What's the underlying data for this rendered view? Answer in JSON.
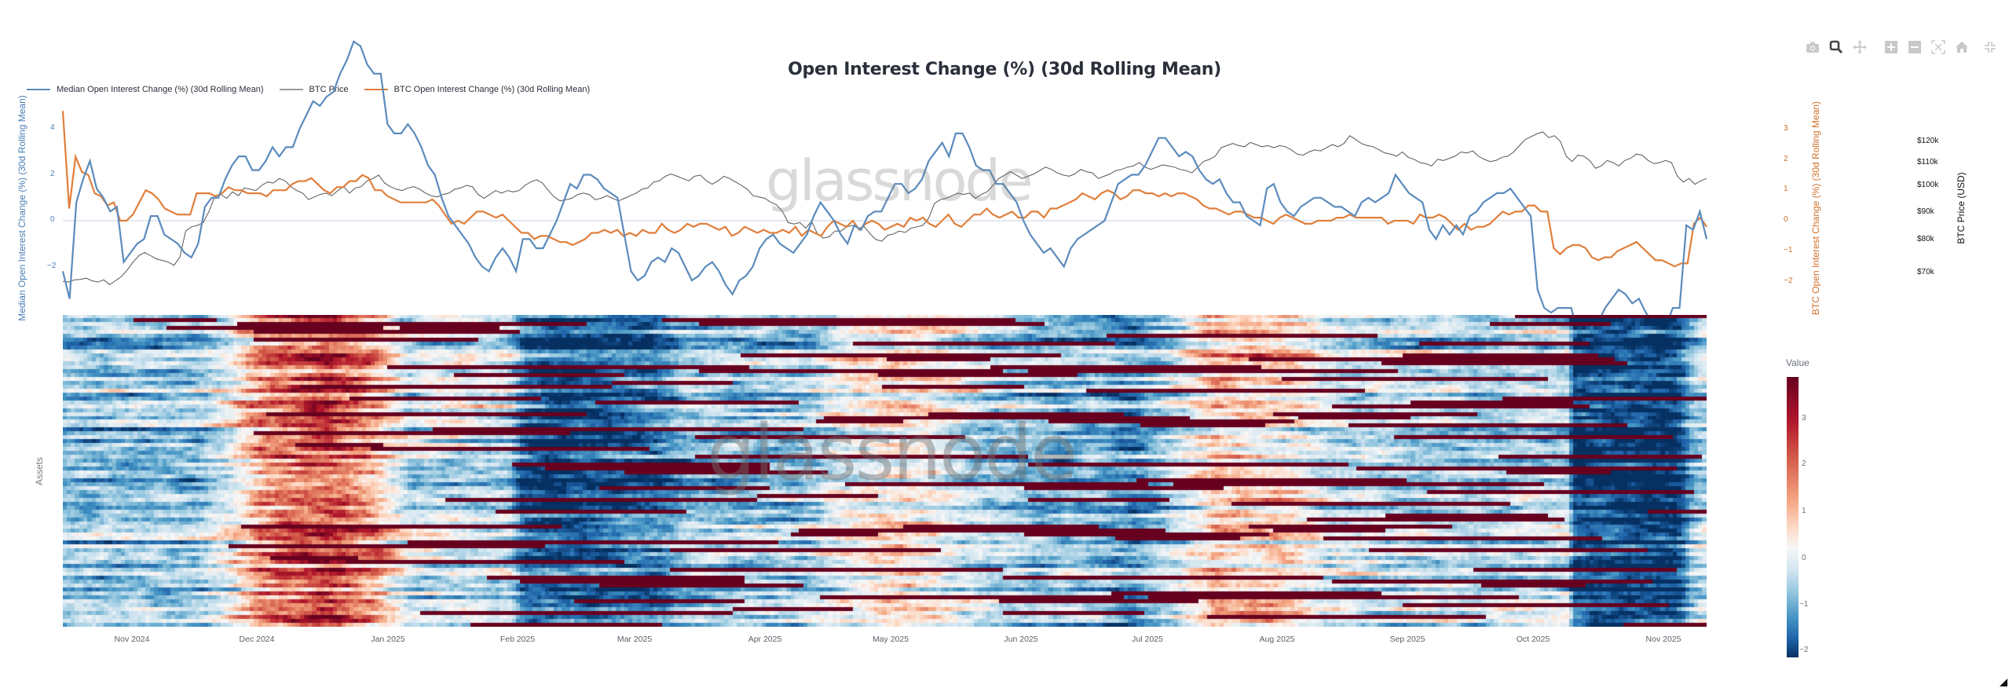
{
  "header": {
    "title": "Open Interest Change (%) (30d Rolling Mean)"
  },
  "modebar": [
    {
      "name": "camera-icon",
      "label": "Download plot as a png"
    },
    {
      "name": "zoom-icon",
      "label": "Zoom"
    },
    {
      "name": "pan-icon",
      "label": "Pan"
    },
    {
      "name": "zoom-in-icon",
      "label": "Zoom in"
    },
    {
      "name": "zoom-out-icon",
      "label": "Zoom out"
    },
    {
      "name": "autoscale-icon",
      "label": "Autoscale"
    },
    {
      "name": "home-icon",
      "label": "Reset axes"
    },
    {
      "name": "fullscreen-exit-icon",
      "label": "Exit fullscreen"
    }
  ],
  "legend": {
    "items": [
      {
        "label": "Median Open Interest Change (%) (30d Rolling Mean)",
        "color": "#5b8bbd"
      },
      {
        "label": "BTC Price",
        "color": "#8a8a8a"
      },
      {
        "label": "BTC Open Interest Change (%) (30d Rolling Mean)",
        "color": "#e07f3c"
      }
    ]
  },
  "axes": {
    "left_title": "Median Open Interest Change (%) (30d Rolling Mean)",
    "left_ticks": [
      "4",
      "2",
      "0",
      "−2"
    ],
    "right1_title": "BTC Open Interest Change (%) (30d Rolling Mean)",
    "right1_ticks": [
      "3",
      "2",
      "1",
      "0",
      "−1",
      "−2"
    ],
    "right2_title": "BTC Price (USD)",
    "right2_ticks": [
      "$120k",
      "$110k",
      "$100k",
      "$90k",
      "$80k",
      "$70k"
    ],
    "heatmap_y_title": "Assets",
    "x_ticks": [
      "Nov 2024",
      "Dec 2024",
      "Jan 2025",
      "Feb 2025",
      "Mar 2025",
      "Apr 2025",
      "May 2025",
      "Jun 2025",
      "Jul 2025",
      "Aug 2025",
      "Sep 2025",
      "Oct 2025",
      "Nov 2025"
    ]
  },
  "colorbar": {
    "title": "Value",
    "ticks": [
      "3",
      "2",
      "1",
      "0",
      "−1",
      "−2"
    ]
  },
  "watermark": "glassnode",
  "colors": {
    "median_line": "#5b8bbd",
    "btc_price_line": "#555555",
    "btc_oi_line": "#e07f3c",
    "zero_line": "#e3e8ef"
  },
  "chart_data": [
    {
      "type": "line",
      "title": "Open Interest Change (%) (30d Rolling Mean)",
      "xlabel": "",
      "x_range": [
        "2024-10-15",
        "2025-11-17"
      ],
      "x_ticks": [
        "Nov 2024",
        "Dec 2024",
        "Jan 2025",
        "Feb 2025",
        "Mar 2025",
        "Apr 2025",
        "May 2025",
        "Jun 2025",
        "Jul 2025",
        "Aug 2025",
        "Sep 2025",
        "Oct 2025",
        "Nov 2025"
      ],
      "legend_position": "top-left",
      "grid": false,
      "series": [
        {
          "name": "Median Open Interest Change (%) (30d Rolling Mean)",
          "axis": "y-left",
          "ylim": [
            -2.8,
            4.5
          ],
          "values": [
            -1.1,
            -1.7,
            0.4,
            0.9,
            1.3,
            0.7,
            0.5,
            0.2,
            0.3,
            -0.9,
            -0.7,
            -0.5,
            -0.4,
            0.1,
            0.1,
            -0.3,
            -0.4,
            -0.5,
            -0.7,
            -0.8,
            -0.5,
            0.3,
            0.5,
            0.5,
            0.9,
            1.2,
            1.4,
            1.4,
            1.1,
            1.1,
            1.3,
            1.6,
            1.4,
            1.6,
            1.6,
            2.0,
            2.3,
            2.6,
            2.5,
            2.7,
            2.8,
            3.2,
            3.5,
            3.9,
            3.8,
            3.4,
            3.2,
            3.2,
            2.1,
            1.9,
            1.9,
            2.1,
            1.9,
            1.6,
            1.2,
            1.0,
            0.5,
            0.1,
            -0.1,
            -0.3,
            -0.5,
            -0.8,
            -1.0,
            -1.1,
            -0.8,
            -0.6,
            -0.8,
            -1.1,
            -0.4,
            -0.4,
            -0.6,
            -0.6,
            -0.3,
            0.0,
            0.4,
            0.8,
            0.7,
            1.0,
            1.0,
            0.9,
            0.7,
            0.6,
            0.5,
            -0.3,
            -1.1,
            -1.3,
            -1.2,
            -0.9,
            -0.8,
            -0.9,
            -0.6,
            -0.7,
            -1.0,
            -1.3,
            -1.2,
            -1.0,
            -0.9,
            -1.1,
            -1.4,
            -1.6,
            -1.3,
            -1.2,
            -1.0,
            -0.6,
            -0.4,
            -0.3,
            -0.5,
            -0.6,
            -0.7,
            -0.5,
            -0.3,
            0.1,
            0.4,
            0.2,
            0.0,
            -0.3,
            -0.5,
            -0.1,
            -0.2,
            0.1,
            0.2,
            0.2,
            0.5,
            0.8,
            0.8,
            0.6,
            0.7,
            0.9,
            1.3,
            1.5,
            1.7,
            1.4,
            1.9,
            1.9,
            1.6,
            1.2,
            1.1,
            1.1,
            0.8,
            0.8,
            0.6,
            0.4,
            0.0,
            -0.3,
            -0.5,
            -0.7,
            -0.6,
            -0.8,
            -1.0,
            -0.6,
            -0.4,
            -0.3,
            -0.2,
            -0.1,
            0.0,
            0.4,
            0.8,
            0.9,
            1.0,
            1.0,
            1.2,
            1.5,
            1.8,
            1.8,
            1.6,
            1.4,
            1.5,
            1.4,
            1.1,
            0.9,
            0.8,
            0.9,
            0.6,
            0.4,
            0.4,
            0.1,
            0.0,
            -0.1,
            0.7,
            0.8,
            0.4,
            0.2,
            0.1,
            0.3,
            0.4,
            0.5,
            0.5,
            0.4,
            0.3,
            0.3,
            0.2,
            0.1,
            0.4,
            0.5,
            0.4,
            0.5,
            0.6,
            1.0,
            0.8,
            0.6,
            0.5,
            0.4,
            -0.2,
            -0.4,
            -0.1,
            -0.3,
            -0.1,
            -0.3,
            0.1,
            0.2,
            0.4,
            0.5,
            0.6,
            0.6,
            0.7,
            0.5,
            0.3,
            0.1,
            -1.5,
            -1.9,
            -2.0,
            -1.9,
            -1.9,
            -1.9,
            -2.5,
            -2.8,
            -2.3,
            -2.2,
            -1.9,
            -1.7,
            -1.5,
            -1.6,
            -1.8,
            -1.7,
            -2.0,
            -2.2,
            -2.2,
            -2.3,
            -1.9,
            -1.9,
            -0.1,
            -0.2,
            0.2,
            -0.4
          ]
        },
        {
          "name": "BTC Price",
          "axis": "y-right2",
          "unit": "USD",
          "ylim": [
            60000,
            128000
          ],
          "values": [
            67000,
            66800,
            67500,
            67600,
            68000,
            67200,
            66800,
            67500,
            66000,
            67200,
            68500,
            70500,
            73000,
            75000,
            76000,
            75000,
            74000,
            73500,
            73000,
            72000,
            74500,
            83000,
            84500,
            85000,
            86000,
            90000,
            96000,
            96500,
            95000,
            97500,
            96000,
            99000,
            98500,
            98000,
            100000,
            101500,
            101000,
            103000,
            102000,
            99500,
            98000,
            97000,
            94500,
            95500,
            96500,
            97000,
            96000,
            98000,
            99500,
            97000,
            99000,
            99500,
            102000,
            103000,
            104500,
            101000,
            99500,
            98500,
            98000,
            99000,
            99500,
            98500,
            97000,
            96000,
            95500,
            96500,
            97000,
            98500,
            99000,
            100000,
            99500,
            96500,
            95000,
            96500,
            98000,
            97000,
            98000,
            97500,
            98000,
            100000,
            101500,
            102500,
            101000,
            98000,
            95500,
            94000,
            94500,
            95000,
            96500,
            97000,
            96500,
            94500,
            95000,
            96000,
            95000,
            94000,
            95000,
            96000,
            97000,
            98500,
            99000,
            101500,
            102000,
            104000,
            105000,
            104000,
            103000,
            102000,
            104000,
            104500,
            102000,
            100500,
            102000,
            104000,
            103000,
            101500,
            100000,
            98500,
            96000,
            95500,
            95000,
            93500,
            92500,
            90000,
            86000,
            85500,
            86000,
            84000,
            86500,
            82000,
            80500,
            81000,
            83000,
            83000,
            84500,
            85000,
            84000,
            84500,
            82000,
            80000,
            79500,
            81500,
            82000,
            83000,
            82500,
            84000,
            84500,
            85000,
            87500,
            93000,
            94500,
            95000,
            96000,
            97000,
            96500,
            97000,
            95000,
            96500,
            97500,
            100000,
            103000,
            104500,
            106000,
            104500,
            103000,
            104000,
            105000,
            106500,
            108000,
            107000,
            105500,
            104500,
            104000,
            105000,
            107000,
            106000,
            105500,
            103000,
            104000,
            105000,
            106500,
            107000,
            108000,
            108500,
            110000,
            108000,
            107000,
            108000,
            109000,
            108500,
            108000,
            107000,
            106500,
            105500,
            108000,
            110500,
            111500,
            113000,
            117000,
            118000,
            119000,
            118000,
            117500,
            119500,
            118500,
            117500,
            118000,
            117000,
            118000,
            117500,
            116000,
            114000,
            113500,
            115000,
            116000,
            115500,
            117000,
            118500,
            117500,
            119000,
            123000,
            121000,
            119000,
            118000,
            117500,
            116000,
            114500,
            114000,
            113000,
            115000,
            112500,
            111500,
            110000,
            109500,
            108500,
            111500,
            111000,
            112000,
            113000,
            115000,
            114500,
            115500,
            113000,
            111500,
            110500,
            111000,
            112500,
            113000,
            115000,
            118000,
            121000,
            122500,
            124000,
            125000,
            122000,
            123000,
            120000,
            113000,
            110500,
            113500,
            113000,
            111000,
            107500,
            108500,
            111000,
            110000,
            108500,
            111000,
            112000,
            114000,
            113500,
            111000,
            109500,
            110000,
            111000,
            110000,
            104000,
            101500,
            103000,
            100500,
            102000,
            103000
          ]
        },
        {
          "name": "BTC Open Interest Change (%) (30d Rolling Mean)",
          "axis": "y-right1",
          "ylim": [
            -2.2,
            3.3
          ],
          "values": [
            3.6,
            0.4,
            2.1,
            1.6,
            1.5,
            0.9,
            0.8,
            0.5,
            0.6,
            -0.0,
            0.0,
            0.2,
            0.6,
            1.0,
            0.9,
            0.7,
            0.4,
            0.3,
            0.2,
            0.2,
            0.2,
            0.9,
            0.9,
            0.9,
            0.8,
            0.9,
            1.1,
            1.0,
            1.0,
            0.9,
            0.9,
            0.9,
            0.8,
            1.0,
            1.0,
            1.0,
            1.2,
            1.3,
            1.3,
            1.4,
            1.2,
            1.0,
            0.9,
            1.1,
            1.1,
            1.3,
            1.3,
            1.5,
            1.4,
            1.0,
            1.0,
            0.8,
            0.7,
            0.6,
            0.6,
            0.6,
            0.6,
            0.6,
            0.7,
            0.5,
            0.2,
            -0.1,
            0.0,
            -0.1,
            0.1,
            0.3,
            0.3,
            0.2,
            0.1,
            0.2,
            0.0,
            -0.2,
            -0.4,
            -0.4,
            -0.6,
            -0.5,
            -0.5,
            -0.6,
            -0.7,
            -0.7,
            -0.8,
            -0.7,
            -0.6,
            -0.4,
            -0.4,
            -0.3,
            -0.4,
            -0.3,
            -0.5,
            -0.4,
            -0.5,
            -0.3,
            -0.4,
            -0.4,
            -0.1,
            -0.3,
            -0.4,
            -0.3,
            -0.1,
            -0.2,
            -0.1,
            -0.1,
            -0.2,
            -0.3,
            -0.2,
            -0.5,
            -0.4,
            -0.2,
            -0.3,
            -0.4,
            -0.3,
            -0.4,
            -0.4,
            -0.3,
            -0.4,
            -0.2,
            -0.5,
            -0.3,
            -0.4,
            -0.5,
            -0.2,
            0.0,
            -0.1,
            -0.2,
            0.0,
            -0.3,
            -0.1,
            0.0,
            -0.1,
            -0.3,
            -0.2,
            -0.1,
            -0.2,
            0.1,
            0.0,
            0.1,
            -0.1,
            -0.2,
            0.0,
            0.2,
            -0.1,
            -0.2,
            0.0,
            0.2,
            0.2,
            0.4,
            0.2,
            0.1,
            0.2,
            0.3,
            0.1,
            0.1,
            0.3,
            0.3,
            0.1,
            0.4,
            0.4,
            0.5,
            0.6,
            0.7,
            0.9,
            0.8,
            0.7,
            0.9,
            1.0,
            0.9,
            0.7,
            0.8,
            1.0,
            1.0,
            0.9,
            0.9,
            0.8,
            0.9,
            0.8,
            0.9,
            0.9,
            0.8,
            0.7,
            0.5,
            0.4,
            0.4,
            0.3,
            0.2,
            0.3,
            0.3,
            0.2,
            0.1,
            0.1,
            0.0,
            -0.1,
            0.1,
            0.2,
            0.1,
            0.0,
            -0.1,
            -0.1,
            0.0,
            0.0,
            0.0,
            0.1,
            0.1,
            0.2,
            0.1,
            0.1,
            0.1,
            0.1,
            0.1,
            -0.1,
            0.0,
            0.0,
            0.0,
            -0.1,
            0.2,
            0.1,
            0.1,
            0.2,
            0.1,
            -0.1,
            -0.3,
            -0.1,
            -0.3,
            -0.2,
            -0.2,
            -0.1,
            0.1,
            0.3,
            0.2,
            0.3,
            0.3,
            0.5,
            0.5,
            0.3,
            0.3,
            -0.9,
            -1.1,
            -0.9,
            -0.8,
            -0.8,
            -0.9,
            -1.2,
            -1.3,
            -1.2,
            -1.2,
            -1.0,
            -0.9,
            -0.8,
            -0.7,
            -0.9,
            -1.1,
            -1.3,
            -1.3,
            -1.4,
            -1.5,
            -1.4,
            -1.4,
            -0.1,
            0.1,
            -0.2
          ]
        }
      ]
    },
    {
      "type": "heatmap",
      "title": "",
      "ylabel": "Assets",
      "x_ticks": [
        "Nov 2024",
        "Dec 2024",
        "Jan 2025",
        "Feb 2025",
        "Mar 2025",
        "Apr 2025",
        "May 2025",
        "Jun 2025",
        "Jul 2025",
        "Aug 2025",
        "Sep 2025",
        "Oct 2025",
        "Nov 2025"
      ],
      "rows": 80,
      "columns": 395,
      "colorscale": "RdBu_r",
      "zlim": [
        -2.2,
        3.9
      ],
      "colorbar_title": "Value",
      "colorbar_ticks": [
        3,
        2,
        1,
        0,
        -1,
        -2
      ],
      "regimes": [
        {
          "period": "mid Oct 2024 – mid Nov 2024",
          "typical_value": -0.3
        },
        {
          "period": "mid Nov 2024 – mid Dec 2024",
          "typical_value": 2.6
        },
        {
          "period": "late Dec 2024 – Jan 2025",
          "typical_value": 0.2
        },
        {
          "period": "Feb 2025 – early Mar 2025",
          "typical_value": -1.7
        },
        {
          "period": "Mar 2025 – Apr 2025",
          "typical_value": -0.3
        },
        {
          "period": "late Apr 2025 – May 2025",
          "typical_value": 1.2
        },
        {
          "period": "Jun 2025",
          "typical_value": -0.2
        },
        {
          "period": "early Jul 2025",
          "typical_value": -1.0
        },
        {
          "period": "mid Jul 2025 – early Aug 2025",
          "typical_value": 1.8
        },
        {
          "period": "Aug 2025 – early Oct 2025",
          "typical_value": 0.0
        },
        {
          "period": "mid Oct 2025 – Nov 2025",
          "typical_value": -2.0
        }
      ]
    }
  ]
}
